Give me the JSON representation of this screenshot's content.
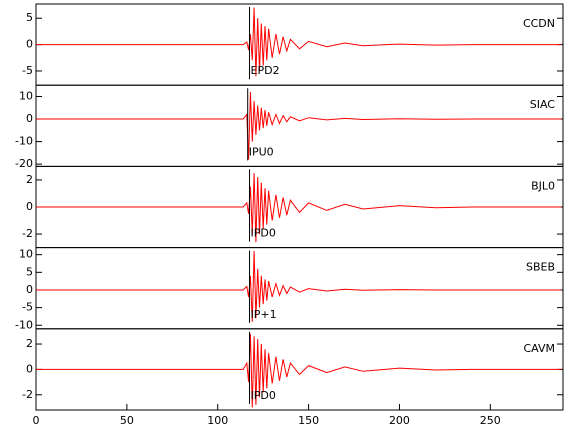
{
  "chart_data": [
    {
      "type": "line",
      "name": "CCDN",
      "pick_label": "EPD2",
      "pick_x": 117.5,
      "color": "#ff0000",
      "x": [
        0,
        20,
        40,
        60,
        80,
        100,
        114,
        116,
        117,
        118,
        119,
        120,
        121,
        122,
        123,
        124,
        125,
        126,
        127,
        128,
        130,
        132,
        134,
        136,
        138,
        140,
        145,
        150,
        160,
        170,
        180,
        200,
        220,
        240,
        260,
        280,
        289
      ],
      "values": [
        0,
        0,
        0,
        0,
        0,
        0,
        0,
        0.5,
        -1,
        2,
        -3,
        7,
        -6,
        5,
        -5,
        4,
        -4,
        3.5,
        -3,
        3,
        -2.5,
        2,
        -1.8,
        1.5,
        -1.2,
        1,
        -0.8,
        0.6,
        -0.4,
        0.3,
        -0.2,
        0.1,
        -0.1,
        0,
        0,
        0,
        0
      ],
      "xlim": [
        0,
        290
      ],
      "ylim": [
        -7.7,
        7.7
      ],
      "yticks": [
        -5,
        0,
        5
      ]
    },
    {
      "type": "line",
      "name": "SIAC",
      "pick_label": "IPU0",
      "pick_x": 116.5,
      "color": "#ff0000",
      "x": [
        0,
        20,
        40,
        60,
        80,
        100,
        114,
        116,
        117,
        118,
        119,
        120,
        121,
        122,
        123,
        124,
        125,
        126,
        127,
        128,
        130,
        132,
        134,
        136,
        138,
        140,
        145,
        150,
        160,
        170,
        180,
        200,
        220,
        240,
        260,
        280,
        289
      ],
      "values": [
        0,
        0,
        0,
        0,
        0,
        0,
        0,
        2,
        -18,
        12,
        -10,
        8,
        -7,
        6,
        -5,
        5,
        -4,
        4,
        -3,
        3,
        -2.5,
        2,
        -2,
        1.5,
        -1.2,
        1,
        -0.8,
        0.6,
        -0.4,
        0.3,
        -0.2,
        0.1,
        -0.1,
        0,
        0,
        0,
        0
      ],
      "xlim": [
        0,
        290
      ],
      "ylim": [
        -21,
        15
      ],
      "yticks": [
        -20,
        -10,
        0,
        10
      ]
    },
    {
      "type": "line",
      "name": "BJL0",
      "pick_label": "IPD0",
      "pick_x": 117.5,
      "color": "#ff0000",
      "x": [
        0,
        20,
        40,
        60,
        80,
        100,
        114,
        116,
        117,
        118,
        119,
        120,
        121,
        122,
        123,
        124,
        125,
        126,
        127,
        128,
        130,
        132,
        134,
        136,
        138,
        140,
        145,
        150,
        160,
        170,
        180,
        200,
        220,
        240,
        260,
        280,
        289
      ],
      "values": [
        0,
        0,
        0,
        0,
        0,
        0,
        0,
        0.3,
        -0.5,
        1.5,
        -2,
        2.5,
        -2.6,
        2.2,
        -2,
        1.8,
        -1.6,
        1.4,
        -1.3,
        1.2,
        -1,
        0.9,
        -0.8,
        0.7,
        -0.6,
        0.5,
        -0.4,
        0.3,
        -0.25,
        0.2,
        -0.15,
        0.1,
        -0.05,
        0,
        0,
        0,
        0
      ],
      "xlim": [
        0,
        290
      ],
      "ylim": [
        -3,
        3
      ],
      "yticks": [
        -2,
        0,
        2
      ]
    },
    {
      "type": "line",
      "name": "SBEB",
      "pick_label": "IP+1",
      "pick_x": 117.5,
      "color": "#ff0000",
      "x": [
        0,
        20,
        40,
        60,
        80,
        100,
        114,
        116,
        117,
        118,
        119,
        120,
        121,
        122,
        123,
        124,
        125,
        126,
        127,
        128,
        130,
        132,
        134,
        136,
        138,
        140,
        145,
        150,
        160,
        170,
        180,
        200,
        220,
        240,
        260,
        280,
        289
      ],
      "values": [
        0,
        0,
        0,
        0,
        0,
        0,
        0,
        1,
        -2,
        4,
        -9,
        11,
        -8,
        6,
        -5,
        4,
        -4,
        3,
        -3,
        2.5,
        -2,
        1.8,
        -1.5,
        1.2,
        -1,
        0.8,
        -0.6,
        0.4,
        -0.3,
        0.2,
        -0.1,
        0.1,
        0,
        0,
        0,
        0,
        0
      ],
      "xlim": [
        0,
        290
      ],
      "ylim": [
        -11,
        12
      ],
      "yticks": [
        -10,
        -5,
        0,
        5,
        10
      ]
    },
    {
      "type": "line",
      "name": "CAVM",
      "pick_label": "IPD0",
      "pick_x": 117.5,
      "color": "#ff0000",
      "x": [
        0,
        20,
        40,
        60,
        80,
        100,
        114,
        116,
        117,
        118,
        119,
        120,
        121,
        122,
        123,
        124,
        125,
        126,
        127,
        128,
        130,
        132,
        134,
        136,
        138,
        140,
        145,
        150,
        160,
        170,
        180,
        200,
        220,
        240,
        260,
        280,
        289
      ],
      "values": [
        0,
        0,
        0,
        0,
        0,
        0,
        0,
        0.5,
        -1,
        2.8,
        -3,
        2.6,
        -2.8,
        2.4,
        -2.2,
        2,
        -1.8,
        1.6,
        -1.5,
        1.3,
        -1.1,
        1,
        -0.9,
        0.8,
        -0.6,
        0.5,
        -0.4,
        0.3,
        -0.25,
        0.2,
        -0.15,
        0.1,
        -0.05,
        0,
        0,
        0,
        0
      ],
      "xlim": [
        0,
        290
      ],
      "ylim": [
        -3.2,
        3.2
      ],
      "yticks": [
        -2,
        0,
        2
      ],
      "xticks": [
        0,
        50,
        100,
        150,
        200,
        250
      ]
    }
  ]
}
